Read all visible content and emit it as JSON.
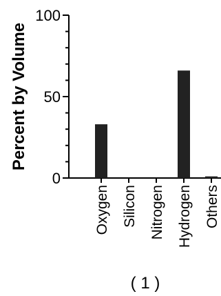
{
  "chart_data": {
    "type": "bar",
    "categories": [
      "Oxygen",
      "Silicon",
      "Nitrogen",
      "Hydrogen",
      "Others"
    ],
    "values": [
      33,
      0,
      0,
      66,
      1
    ],
    "ylabel": "Percent by Volume",
    "xlabel": "",
    "ylim": [
      0,
      100
    ],
    "yticks": [
      "0",
      "50",
      "100"
    ],
    "bar_color": "#222222",
    "grid": false
  },
  "caption": "( 1 )"
}
